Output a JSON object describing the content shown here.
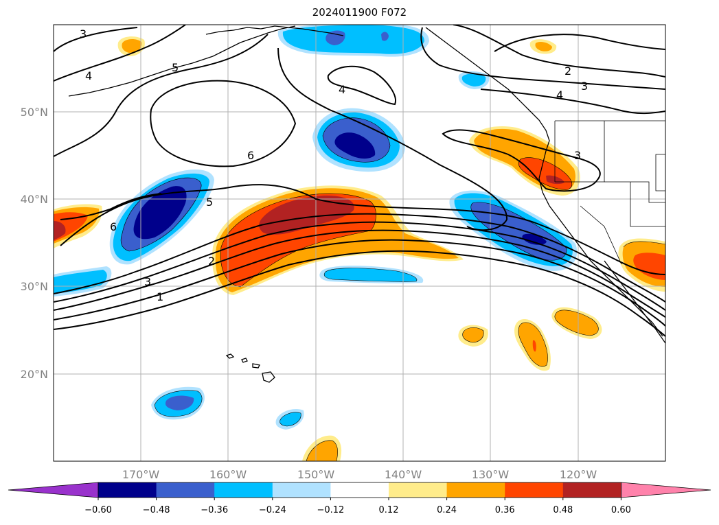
{
  "title": "2024011900 F072",
  "map": {
    "lon_range": [
      180,
      110
    ],
    "lat_range": [
      10,
      60
    ],
    "lat_labels": [
      "50°N",
      "40°N",
      "30°N",
      "20°N"
    ],
    "lon_labels": [
      "170°W",
      "160°W",
      "150°W",
      "140°W",
      "130°W",
      "120°W"
    ],
    "gridlines": true
  },
  "colorbar": {
    "ticks": [
      "−0.60",
      "−0.48",
      "−0.36",
      "−0.24",
      "−0.12",
      "0.12",
      "0.24",
      "0.36",
      "0.48",
      "0.60"
    ],
    "colors": [
      "#9932cc",
      "#00008b",
      "#3a5fcd",
      "#00bfff",
      "#b0e2ff",
      "#ffffff",
      "#ffec8b",
      "#ffa500",
      "#ff4500",
      "#b22222",
      "#ff82ab"
    ],
    "extend": "both"
  },
  "contour_labels": [
    "3",
    "4",
    "5",
    "6",
    "4",
    "2",
    "3",
    "4",
    "3",
    "6",
    "5",
    "2",
    "3",
    "1"
  ]
}
